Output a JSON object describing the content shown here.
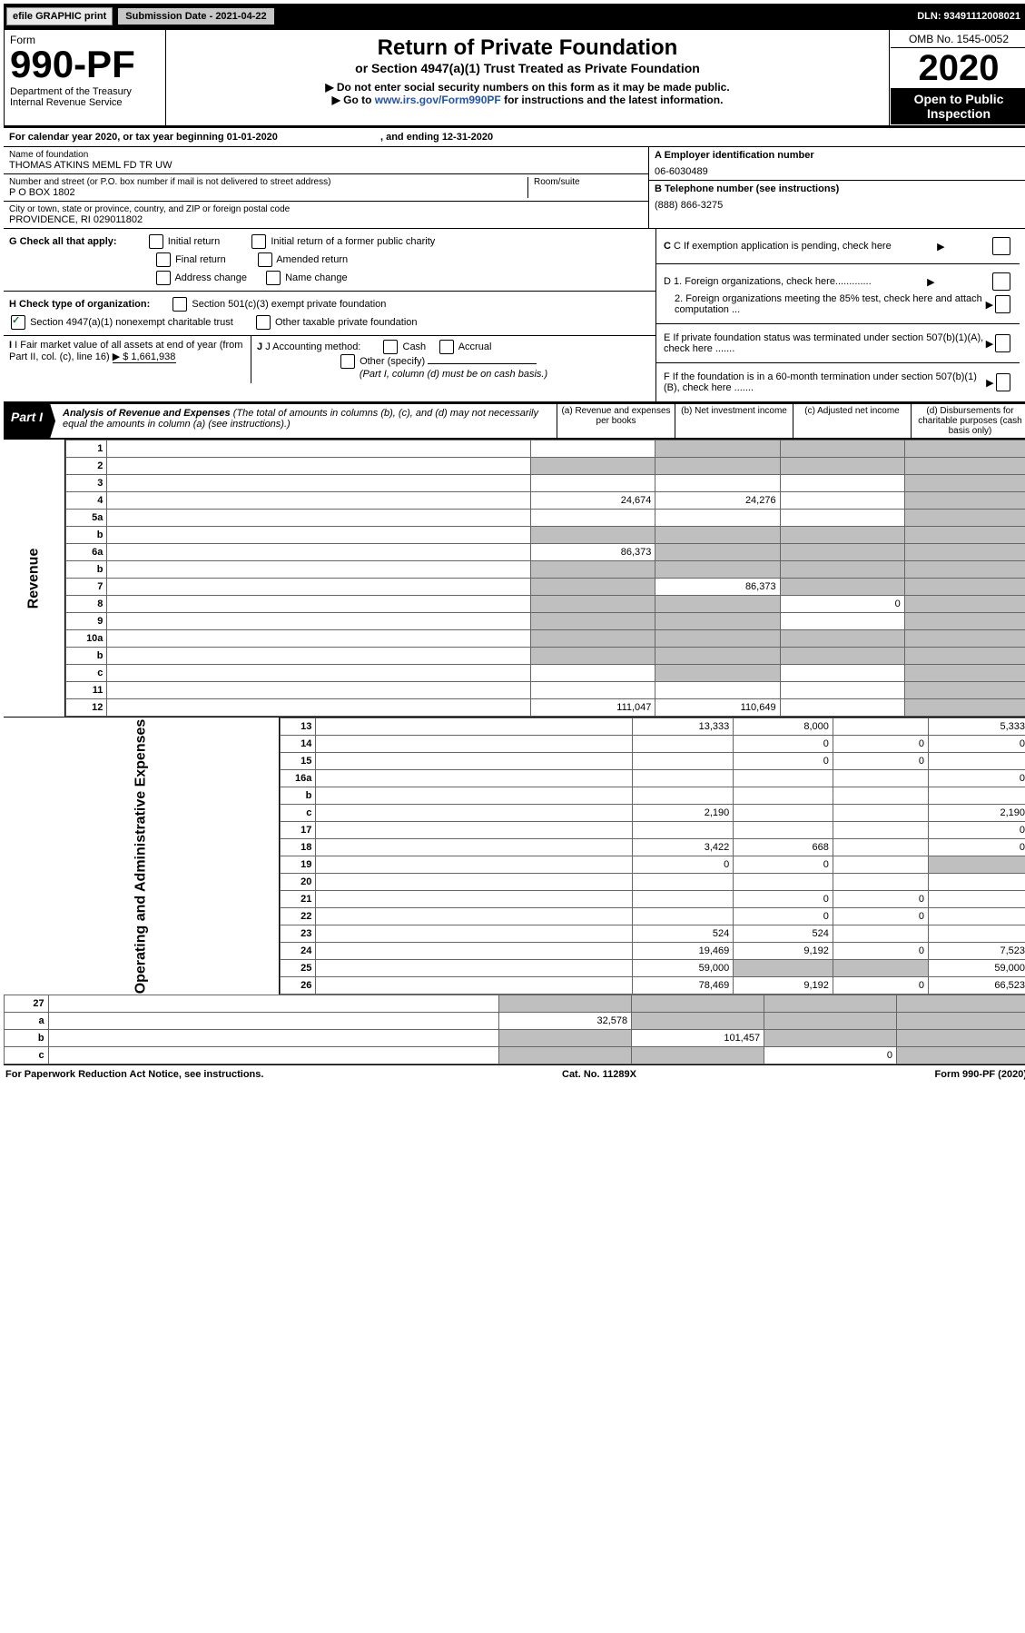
{
  "top_bar": {
    "efile": "efile GRAPHIC print",
    "submission": "Submission Date - 2021-04-22",
    "dln": "DLN: 93491112008021"
  },
  "header": {
    "form": "Form",
    "form_no": "990-PF",
    "dept1": "Department of the Treasury",
    "dept2": "Internal Revenue Service",
    "title": "Return of Private Foundation",
    "subtitle": "or Section 4947(a)(1) Trust Treated as Private Foundation",
    "instr1": "▶ Do not enter social security numbers on this form as it may be made public.",
    "instr2_a": "▶ Go to ",
    "instr2_link": "www.irs.gov/Form990PF",
    "instr2_b": " for instructions and the latest information.",
    "omb": "OMB No. 1545-0052",
    "year": "2020",
    "open": "Open to Public Inspection"
  },
  "cal_year": {
    "a": "For calendar year 2020, or tax year beginning 01-01-2020",
    "b": ", and ending 12-31-2020"
  },
  "id": {
    "name_lbl": "Name of foundation",
    "name": "THOMAS ATKINS MEML FD TR UW",
    "addr_lbl": "Number and street (or P.O. box number if mail is not delivered to street address)",
    "addr": "P O BOX 1802",
    "room_lbl": "Room/suite",
    "city_lbl": "City or town, state or province, country, and ZIP or foreign postal code",
    "city": "PROVIDENCE, RI  029011802",
    "ein_lbl": "A Employer identification number",
    "ein": "06-6030489",
    "tel_lbl": "B Telephone number (see instructions)",
    "tel": "(888) 866-3275",
    "c": "C If exemption application is pending, check here",
    "d1": "D 1. Foreign organizations, check here.............",
    "d2": "2. Foreign organizations meeting the 85% test, check here and attach computation ...",
    "e": "E  If private foundation status was terminated under section 507(b)(1)(A), check here .......",
    "f": "F  If the foundation is in a 60-month termination under section 507(b)(1)(B), check here .......",
    "g": "G Check all that apply:",
    "g_initial": "Initial return",
    "g_initial_former": "Initial return of a former public charity",
    "g_final": "Final return",
    "g_amended": "Amended return",
    "g_addr": "Address change",
    "g_name": "Name change",
    "h": "H Check type of organization:",
    "h_501": "Section 501(c)(3) exempt private foundation",
    "h_4947": "Section 4947(a)(1) nonexempt charitable trust",
    "h_other": "Other taxable private foundation",
    "i": "I Fair market value of all assets at end of year (from Part II, col. (c), line 16)",
    "i_amt": "▶ $  1,661,938",
    "j": "J Accounting method:",
    "j_cash": "Cash",
    "j_accrual": "Accrual",
    "j_other": "Other (specify)",
    "j_note": "(Part I, column (d) must be on cash basis.)"
  },
  "part1": {
    "badge": "Part I",
    "title": "Analysis of Revenue and Expenses",
    "note": "(The total of amounts in columns (b), (c), and (d) may not necessarily equal the amounts in column (a) (see instructions).)",
    "cols": {
      "a": "(a)   Revenue and expenses per books",
      "b": "(b)   Net investment income",
      "c": "(c)   Adjusted net income",
      "d": "(d)  Disbursements for charitable purposes (cash basis only)"
    }
  },
  "side": {
    "revenue": "Revenue",
    "expenses": "Operating and Administrative Expenses"
  },
  "rows": [
    {
      "n": "1",
      "d": "",
      "a": "",
      "b": "",
      "c": "",
      "s": {
        "b": true,
        "c": true,
        "d": true
      }
    },
    {
      "n": "2",
      "d": "",
      "a": "",
      "b": "",
      "c": "",
      "s": {
        "a": true,
        "b": true,
        "c": true,
        "d": true
      },
      "ital": true,
      "dots": true
    },
    {
      "n": "3",
      "d": "",
      "a": "",
      "b": "",
      "c": "",
      "s": {
        "d": true
      }
    },
    {
      "n": "4",
      "d": "",
      "a": "24,674",
      "b": "24,276",
      "c": "",
      "s": {
        "d": true
      },
      "dots": true
    },
    {
      "n": "5a",
      "d": "",
      "a": "",
      "b": "",
      "c": "",
      "s": {
        "d": true
      },
      "dots": true
    },
    {
      "n": "b",
      "d": "",
      "a": "",
      "b": "",
      "c": "",
      "s": {
        "a": true,
        "b": true,
        "c": true,
        "d": true
      }
    },
    {
      "n": "6a",
      "d": "",
      "a": "86,373",
      "b": "",
      "c": "",
      "s": {
        "b": true,
        "c": true,
        "d": true
      }
    },
    {
      "n": "b",
      "d": "",
      "a": "",
      "b": "",
      "c": "",
      "s": {
        "a": true,
        "b": true,
        "c": true,
        "d": true
      }
    },
    {
      "n": "7",
      "d": "",
      "a": "",
      "b": "86,373",
      "c": "",
      "s": {
        "a": true,
        "c": true,
        "d": true
      },
      "dots": true
    },
    {
      "n": "8",
      "d": "",
      "a": "",
      "b": "",
      "c": "0",
      "s": {
        "a": true,
        "b": true,
        "d": true
      },
      "dots": true
    },
    {
      "n": "9",
      "d": "",
      "a": "",
      "b": "",
      "c": "",
      "s": {
        "a": true,
        "b": true,
        "d": true
      },
      "dots": true
    },
    {
      "n": "10a",
      "d": "",
      "a": "",
      "b": "",
      "c": "",
      "s": {
        "a": true,
        "b": true,
        "c": true,
        "d": true
      }
    },
    {
      "n": "b",
      "d": "",
      "a": "",
      "b": "",
      "c": "",
      "s": {
        "a": true,
        "b": true,
        "c": true,
        "d": true
      },
      "dots": true
    },
    {
      "n": "c",
      "d": "",
      "a": "",
      "b": "",
      "c": "",
      "s": {
        "b": true,
        "d": true
      },
      "dots": true
    },
    {
      "n": "11",
      "d": "",
      "a": "",
      "b": "",
      "c": "",
      "s": {
        "d": true
      },
      "dots": true
    },
    {
      "n": "12",
      "d": "",
      "a": "111,047",
      "b": "110,649",
      "c": "",
      "s": {
        "d": true
      },
      "bold": true,
      "dots": true
    }
  ],
  "rows2": [
    {
      "n": "13",
      "d": "5,333",
      "a": "13,333",
      "b": "8,000",
      "c": ""
    },
    {
      "n": "14",
      "d": "0",
      "a": "",
      "b": "0",
      "c": "0",
      "dots": true
    },
    {
      "n": "15",
      "d": "",
      "a": "",
      "b": "0",
      "c": "0",
      "dots": true
    },
    {
      "n": "16a",
      "d": "0",
      "a": "",
      "b": "",
      "c": "",
      "dots": true
    },
    {
      "n": "b",
      "d": "",
      "a": "",
      "b": "",
      "c": "",
      "dots": true
    },
    {
      "n": "c",
      "d": "2,190",
      "a": "2,190",
      "b": "",
      "c": "",
      "dots": true
    },
    {
      "n": "17",
      "d": "0",
      "a": "",
      "b": "",
      "c": "",
      "dots": true
    },
    {
      "n": "18",
      "d": "0",
      "a": "3,422",
      "b": "668",
      "c": "",
      "dots": true
    },
    {
      "n": "19",
      "d": "",
      "a": "0",
      "b": "0",
      "c": "",
      "dots": true,
      "s": {
        "d": true
      }
    },
    {
      "n": "20",
      "d": "",
      "a": "",
      "b": "",
      "c": "",
      "dots": true
    },
    {
      "n": "21",
      "d": "",
      "a": "",
      "b": "0",
      "c": "0",
      "dots": true
    },
    {
      "n": "22",
      "d": "",
      "a": "",
      "b": "0",
      "c": "0",
      "dots": true
    },
    {
      "n": "23",
      "d": "",
      "a": "524",
      "b": "524",
      "c": "",
      "dots": true
    },
    {
      "n": "24",
      "d": "7,523",
      "a": "19,469",
      "b": "9,192",
      "c": "0",
      "bold": true,
      "dots": true
    },
    {
      "n": "25",
      "d": "59,000",
      "a": "59,000",
      "b": "",
      "c": "",
      "s": {
        "b": true,
        "c": true
      },
      "dots": true
    },
    {
      "n": "26",
      "d": "66,523",
      "a": "78,469",
      "b": "9,192",
      "c": "0",
      "bold": true
    }
  ],
  "rows3": [
    {
      "n": "27",
      "d": "",
      "a": "",
      "b": "",
      "c": "",
      "s": {
        "a": true,
        "b": true,
        "c": true,
        "d": true
      }
    },
    {
      "n": "a",
      "d": "",
      "a": "32,578",
      "b": "",
      "c": "",
      "s": {
        "b": true,
        "c": true,
        "d": true
      },
      "bold": true
    },
    {
      "n": "b",
      "d": "",
      "a": "",
      "b": "101,457",
      "c": "",
      "s": {
        "a": true,
        "c": true,
        "d": true
      },
      "bold": true
    },
    {
      "n": "c",
      "d": "",
      "a": "",
      "b": "",
      "c": "0",
      "s": {
        "a": true,
        "b": true,
        "d": true
      },
      "bold": true,
      "dots": true
    }
  ],
  "footer": {
    "l": "For Paperwork Reduction Act Notice, see instructions.",
    "m": "Cat. No. 11289X",
    "r": "Form 990-PF (2020)"
  }
}
